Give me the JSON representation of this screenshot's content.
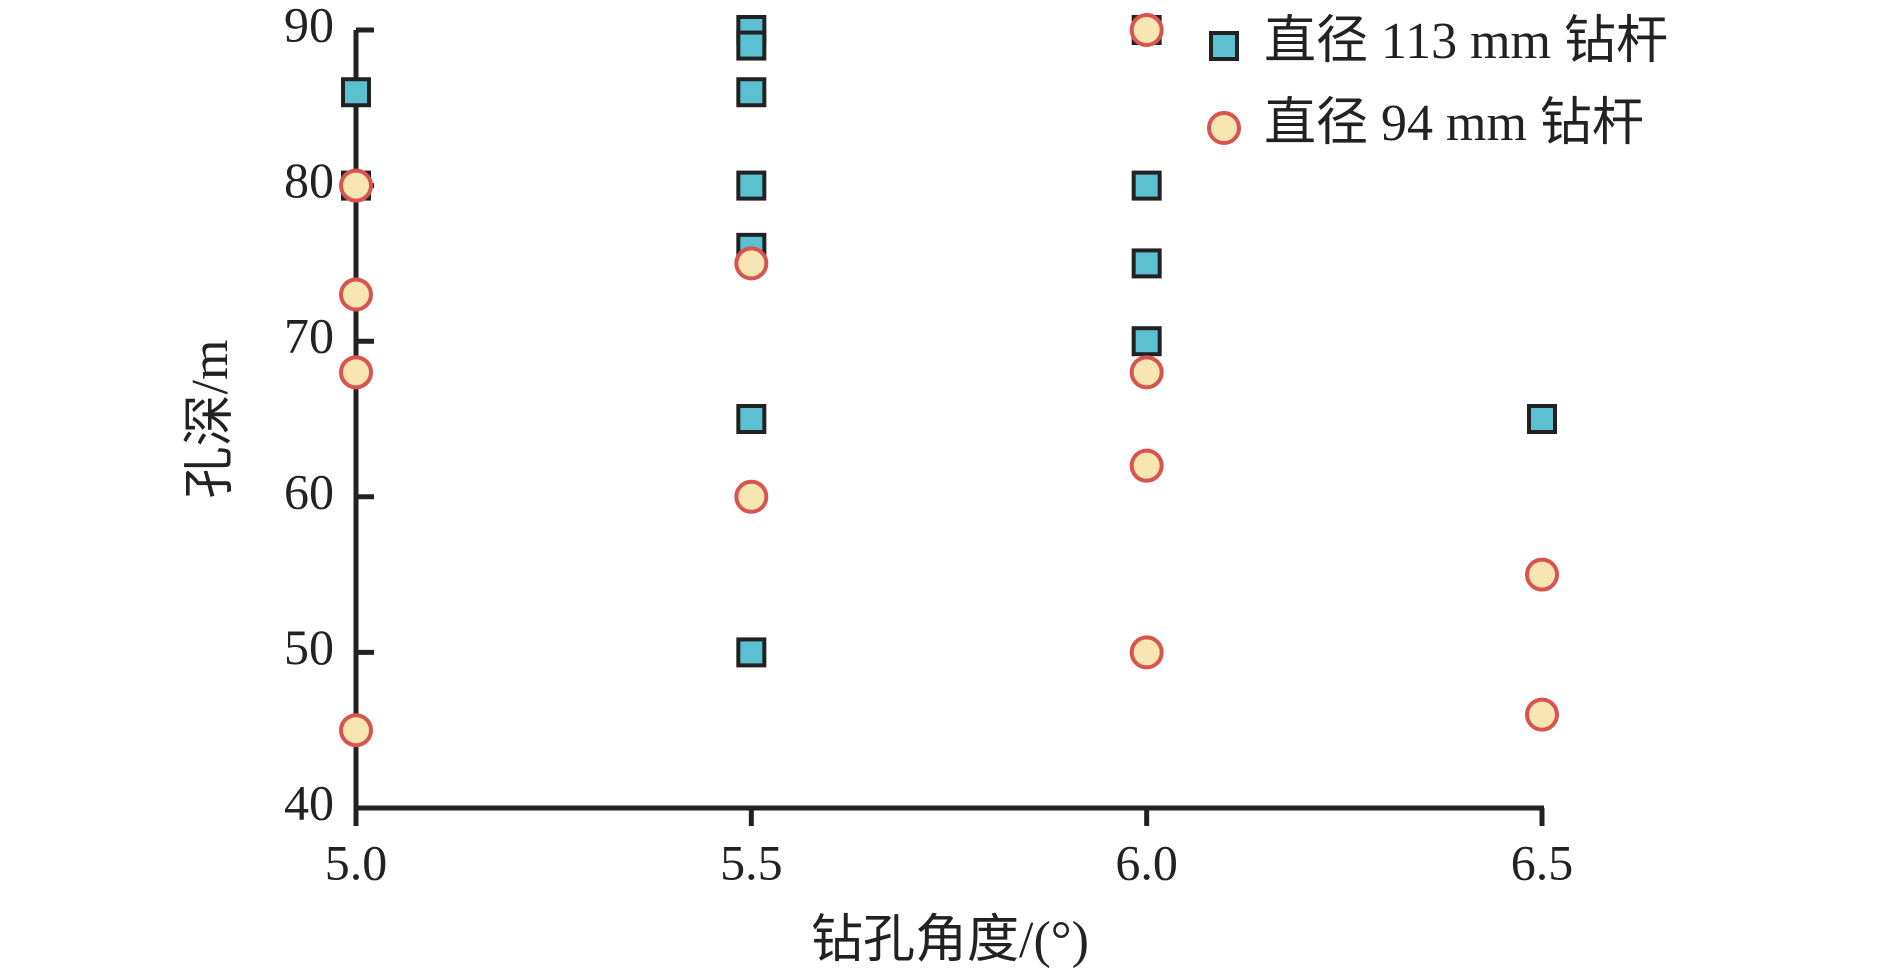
{
  "chart_data": {
    "type": "scatter",
    "x_label": "钻孔角度/(°)",
    "y_label": "孔深/m",
    "xlim": [
      5,
      6.5
    ],
    "ylim": [
      40,
      90
    ],
    "xticks": [
      {
        "value": 5,
        "label": "5.0"
      },
      {
        "value": 5.5,
        "label": "5.5"
      },
      {
        "value": 6,
        "label": "6.0"
      },
      {
        "value": 6.5,
        "label": "6.5"
      }
    ],
    "yticks": [
      40,
      50,
      60,
      70,
      80,
      90
    ],
    "legend": "upper right",
    "series": [
      {
        "name": "直径 113 mm 钻杆",
        "marker": "square",
        "color": "#5bc0cf",
        "edge_color": "#222222",
        "x": [
          5,
          5,
          5.5,
          5.5,
          5.5,
          5.5,
          5.5,
          5.5,
          5.5,
          6,
          6,
          6,
          6,
          6.5
        ],
        "values": [
          86,
          80,
          90,
          89,
          86,
          80,
          76,
          65,
          50,
          90,
          80,
          75,
          70,
          65
        ]
      },
      {
        "name": "直径 94 mm 钻杆",
        "marker": "circle",
        "color": "#f8e6b2",
        "edge_color": "#d9534f",
        "x": [
          5,
          5,
          5,
          5,
          5.5,
          5.5,
          6,
          6,
          6,
          6,
          6.5,
          6.5
        ],
        "values": [
          80,
          73,
          68,
          45,
          75,
          60,
          90,
          68,
          62,
          50,
          55,
          46
        ]
      }
    ]
  }
}
